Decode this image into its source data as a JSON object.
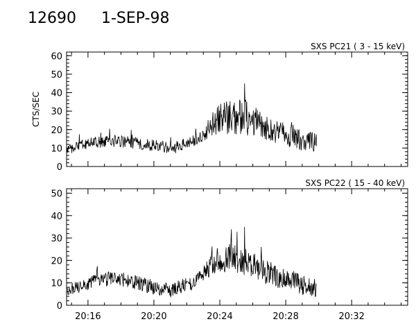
{
  "header": {
    "event_id": "12690",
    "date": "1-SEP-98"
  },
  "chart_data": [
    {
      "type": "line",
      "title": "SXS PC21  (  3 - 15 keV)",
      "ylabel": "CTS/SEC",
      "ylim": [
        0,
        62
      ],
      "yticks": [
        0,
        10,
        20,
        30,
        40,
        50,
        60
      ],
      "xlim": [
        "20:14:42",
        "20:35:24"
      ],
      "xticks": [
        "20:16",
        "20:20",
        "20:24",
        "20:28",
        "20:32"
      ],
      "series": [
        {
          "data_range": [
            "20:14:42",
            "20:29:54"
          ],
          "envelope": {
            "t": [
              "20:14:42",
              "20:15:30",
              "20:16:30",
              "20:17:30",
              "20:18:30",
              "20:19:30",
              "20:20:30",
              "20:21:00",
              "20:21:30",
              "20:22:30",
              "20:23:00",
              "20:23:30",
              "20:24:00",
              "20:24:30",
              "20:25:00",
              "20:25:30",
              "20:26:00",
              "20:26:30",
              "20:27:00",
              "20:27:30",
              "20:28:00",
              "20:28:30",
              "20:29:00",
              "20:29:54"
            ],
            "mean": [
              9,
              11,
              13,
              14,
              13,
              12,
              11,
              9,
              11,
              14,
              17,
              22,
              25,
              27,
              27,
              27,
              25,
              23,
              20,
              18,
              17,
              16,
              14,
              13
            ],
            "spread": [
              2,
              3,
              3,
              3,
              3,
              3,
              3,
              3,
              3,
              3,
              3,
              6,
              8,
              9,
              9,
              9,
              8,
              7,
              6,
              6,
              6,
              6,
              5,
              5
            ]
          },
          "peak": {
            "t": "20:25:30",
            "value": 45
          }
        }
      ]
    },
    {
      "type": "line",
      "title": "SXS PC22  ( 15 - 40 keV)",
      "ylabel": "",
      "ylim": [
        0,
        52
      ],
      "yticks": [
        0,
        10,
        20,
        30,
        40,
        50
      ],
      "xlim": [
        "20:14:42",
        "20:35:24"
      ],
      "xticks": [
        "20:16",
        "20:20",
        "20:24",
        "20:28",
        "20:32"
      ],
      "series": [
        {
          "data_range": [
            "20:14:42",
            "20:29:54"
          ],
          "envelope": {
            "t": [
              "20:14:42",
              "20:15:30",
              "20:16:30",
              "20:17:30",
              "20:18:30",
              "20:19:30",
              "20:20:30",
              "20:21:00",
              "20:21:30",
              "20:22:30",
              "20:23:00",
              "20:23:30",
              "20:24:00",
              "20:24:30",
              "20:25:00",
              "20:25:30",
              "20:26:00",
              "20:26:30",
              "20:27:00",
              "20:27:30",
              "20:28:00",
              "20:28:30",
              "20:29:00",
              "20:29:54"
            ],
            "mean": [
              6,
              9,
              11,
              12,
              11,
              9,
              7,
              6,
              8,
              10,
              14,
              19,
              21,
              21,
              20,
              20,
              18,
              16,
              14,
              13,
              12,
              11,
              9,
              7
            ],
            "spread": [
              2,
              3,
              3,
              3,
              3,
              3,
              3,
              3,
              3,
              3,
              3,
              5,
              6,
              6,
              6,
              6,
              5,
              5,
              5,
              5,
              4,
              4,
              4,
              4
            ]
          },
          "peak": {
            "t": "20:25:30",
            "value": 35
          }
        }
      ]
    }
  ]
}
